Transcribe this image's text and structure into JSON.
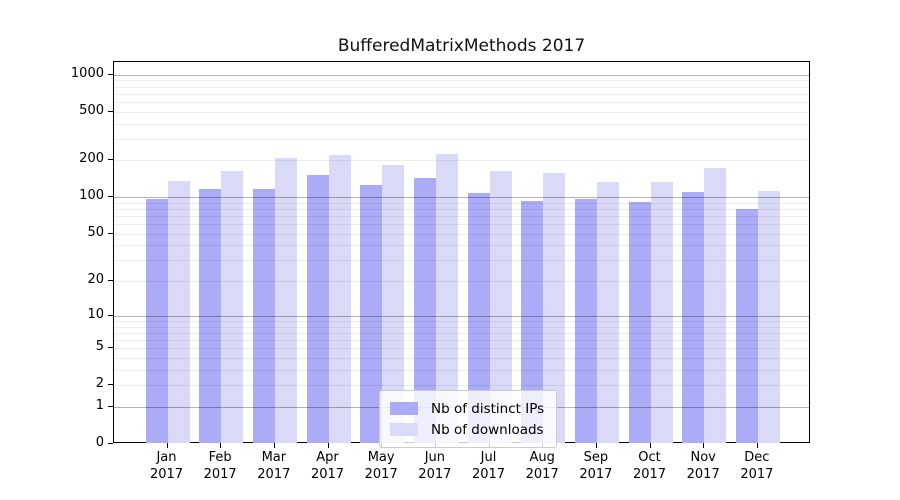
{
  "figure": {
    "title": "BufferedMatrixMethods 2017"
  },
  "chart_data": {
    "type": "bar",
    "title": "BufferedMatrixMethods 2017",
    "categories": [
      "Jan",
      "Feb",
      "Mar",
      "Apr",
      "May",
      "Jun",
      "Jul",
      "Aug",
      "Sep",
      "Oct",
      "Nov",
      "Dec"
    ],
    "category_year": "2017",
    "series": [
      {
        "name": "Nb of distinct IPs",
        "color": "#ababf7",
        "values": [
          97,
          117,
          117,
          153,
          125,
          145,
          108,
          94,
          97,
          91,
          110,
          80
        ]
      },
      {
        "name": "Nb of downloads",
        "color": "#dadaf8",
        "values": [
          135,
          163,
          210,
          220,
          183,
          228,
          163,
          158,
          134,
          134,
          175,
          113
        ]
      }
    ],
    "xlabel": "",
    "ylabel": "",
    "y_scale": "log1p (y position proportional to log10(1+value), 0 at baseline)",
    "yticks": [
      0,
      1,
      2,
      5,
      10,
      20,
      50,
      100,
      200,
      500,
      1000
    ],
    "minor_gridlines": [
      2,
      3,
      4,
      5,
      6,
      7,
      8,
      9,
      20,
      30,
      40,
      50,
      60,
      70,
      80,
      90,
      200,
      300,
      400,
      500,
      600,
      700,
      800,
      900
    ],
    "major_gridlines": [
      1,
      10,
      100,
      1000
    ],
    "ylim": [
      0,
      1300
    ],
    "grid": "horizontal, major dark + minor light, drawn over bars",
    "legend_position": "inside bottom-center",
    "colors": {
      "major_grid": "rgba(0,0,0,0.30)",
      "minor_grid": "rgba(0,0,0,0.07)",
      "spine": "#000000",
      "background": "#ffffff"
    }
  },
  "legend": {
    "items": [
      {
        "label": "Nb of distinct IPs",
        "color": "#ababf7"
      },
      {
        "label": "Nb of downloads",
        "color": "#dadaf8"
      }
    ]
  }
}
